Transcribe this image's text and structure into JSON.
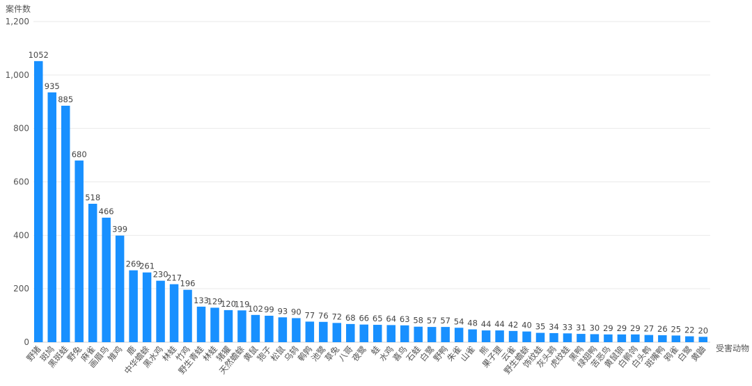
{
  "chart_data": {
    "type": "bar",
    "xlabel": "受害动物",
    "ylabel": "案件数",
    "ylim": [
      0,
      1200
    ],
    "yticks": [
      "0",
      "200",
      "400",
      "600",
      "800",
      "1,000",
      "1,200"
    ],
    "grid": true,
    "bar_color": "#1890ff",
    "categories": [
      "野猪",
      "斑鸠",
      "黑斑蛙",
      "野兔",
      "麻雀",
      "画眉鸟",
      "雉鸡",
      "鹿",
      "中华蟾蜍",
      "黑水鸡",
      "林蛙",
      "竹鸡",
      "野生青蛙",
      "林蛙",
      "猪獾",
      "天然蟾蜍",
      "黄鼠",
      "狍子",
      "松鼠",
      "乌鸫",
      "鹌鹑",
      "池鹭",
      "草兔",
      "八哥",
      "夜鹭",
      "蛙",
      "水鸡",
      "喜鸟",
      "石蛙",
      "白鹭",
      "野鸭",
      "朱雀",
      "山雀",
      "熊",
      "果子狸",
      "云雀",
      "野生蟾蜍",
      "饰纹蛙",
      "灰头鹀",
      "虎纹蛙",
      "黑鸭",
      "绿翅鸭",
      "苦恶鸟",
      "黄鼠狼",
      "白鹡鸰",
      "白头鹎",
      "斑嘴鸭",
      "鸦雀",
      "白鹭",
      "黄鼬"
    ],
    "values": [
      1052,
      935,
      885,
      680,
      518,
      466,
      399,
      269,
      261,
      230,
      217,
      196,
      133,
      129,
      120,
      119,
      102,
      99,
      93,
      90,
      77,
      76,
      72,
      68,
      66,
      65,
      64,
      63,
      58,
      57,
      57,
      54,
      48,
      44,
      44,
      42,
      40,
      35,
      34,
      33,
      31,
      30,
      29,
      29,
      29,
      27,
      26,
      25,
      22,
      20
    ]
  }
}
